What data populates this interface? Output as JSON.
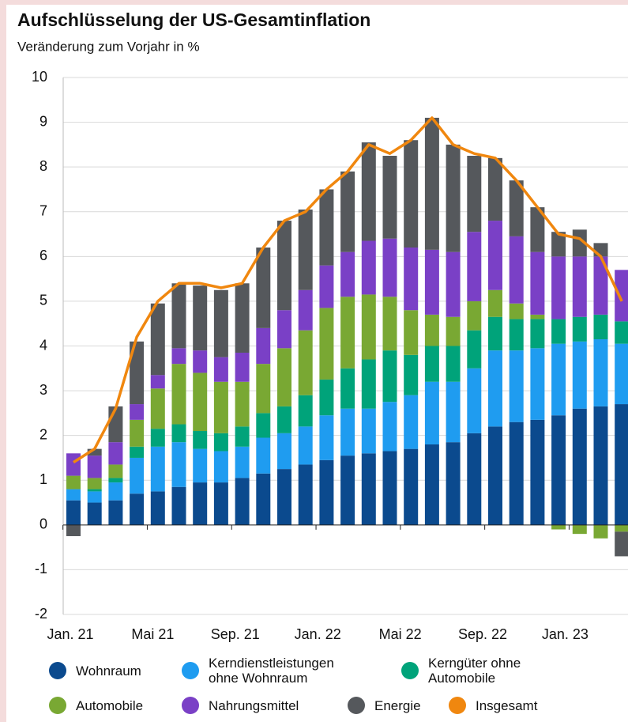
{
  "chart_data": {
    "type": "bar",
    "stacked": true,
    "title": "Aufschlüsselung der US-Gesamtinflation",
    "subtitle": "Veränderung zum Vorjahr in %",
    "categories": [
      "Jan. 21",
      null,
      null,
      null,
      "Mai 21",
      null,
      null,
      null,
      "Sep. 21",
      null,
      null,
      null,
      "Jan. 22",
      null,
      null,
      null,
      "Mai 22",
      null,
      null,
      null,
      "Sep. 22",
      null,
      null,
      null,
      "Jan. 23",
      null,
      null
    ],
    "ylim": [
      -2,
      10
    ],
    "yticks": [
      -2,
      -1,
      0,
      1,
      2,
      3,
      4,
      5,
      6,
      7,
      8,
      9,
      10
    ],
    "grid": true,
    "series": [
      {
        "name": "Wohnraum",
        "color": "#0b4a8e",
        "values": [
          0.55,
          0.5,
          0.55,
          0.7,
          0.75,
          0.85,
          0.95,
          0.95,
          1.05,
          1.15,
          1.25,
          1.35,
          1.45,
          1.55,
          1.6,
          1.65,
          1.7,
          1.8,
          1.85,
          2.05,
          2.2,
          2.3,
          2.35,
          2.45,
          2.6,
          2.65,
          2.7
        ]
      },
      {
        "name": "Kerndienstleistungen ohne Wohnraum",
        "color": "#1f9cf0",
        "values": [
          0.25,
          0.25,
          0.4,
          0.8,
          1.0,
          1.0,
          0.75,
          0.7,
          0.7,
          0.8,
          0.8,
          0.85,
          1.0,
          1.05,
          1.0,
          1.1,
          1.2,
          1.4,
          1.35,
          1.45,
          1.7,
          1.6,
          1.6,
          1.6,
          1.5,
          1.5,
          1.35
        ]
      },
      {
        "name": "Kerngüter ohne Automobile",
        "color": "#00a37a",
        "values": [
          0.0,
          0.05,
          0.1,
          0.25,
          0.4,
          0.4,
          0.4,
          0.4,
          0.45,
          0.55,
          0.6,
          0.7,
          0.8,
          0.9,
          1.1,
          1.15,
          0.9,
          0.8,
          0.8,
          0.85,
          0.75,
          0.7,
          0.65,
          0.55,
          0.55,
          0.55,
          0.5
        ]
      },
      {
        "name": "Automobile",
        "color": "#79a833",
        "values": [
          0.3,
          0.25,
          0.3,
          0.6,
          0.9,
          1.35,
          1.3,
          1.15,
          1.0,
          1.1,
          1.3,
          1.45,
          1.6,
          1.6,
          1.45,
          1.2,
          1.0,
          0.7,
          0.65,
          0.65,
          0.6,
          0.35,
          0.1,
          -0.1,
          -0.2,
          -0.3,
          -0.15
        ]
      },
      {
        "name": "Nahrungsmittel",
        "color": "#7a40c6",
        "values": [
          0.5,
          0.5,
          0.5,
          0.35,
          0.3,
          0.35,
          0.5,
          0.55,
          0.65,
          0.8,
          0.85,
          0.9,
          0.95,
          1.0,
          1.2,
          1.3,
          1.4,
          1.45,
          1.45,
          1.55,
          1.55,
          1.5,
          1.4,
          1.4,
          1.35,
          1.3,
          1.15
        ]
      },
      {
        "name": "Energie",
        "color": "#55585c",
        "values": [
          -0.25,
          0.15,
          0.8,
          1.4,
          1.6,
          1.45,
          1.45,
          1.5,
          1.55,
          1.8,
          2.0,
          1.8,
          1.7,
          1.8,
          2.2,
          1.85,
          2.4,
          2.95,
          2.4,
          1.7,
          1.4,
          1.25,
          1.0,
          0.55,
          0.6,
          0.3,
          -0.55
        ]
      },
      {
        "name": "Insgesamt",
        "color": "#f0870f",
        "type": "line",
        "values": [
          1.4,
          1.7,
          2.6,
          4.2,
          5.0,
          5.4,
          5.4,
          5.3,
          5.4,
          6.2,
          6.8,
          7.0,
          7.5,
          7.9,
          8.5,
          8.3,
          8.6,
          9.1,
          8.5,
          8.3,
          8.2,
          7.7,
          7.1,
          6.5,
          6.4,
          6.0,
          5.0
        ]
      }
    ]
  }
}
